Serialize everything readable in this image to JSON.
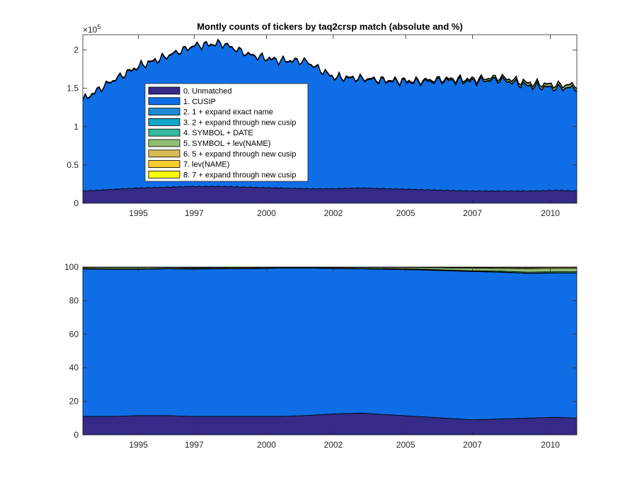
{
  "title": "Montly counts of tickers by taq2crsp match (absolute and %)",
  "chart_data": [
    {
      "type": "area",
      "stacked": true,
      "title": "Montly counts of tickers by taq2crsp match (absolute and %)",
      "xlabel": "",
      "ylabel": "",
      "xlim": [
        1993.0,
        2010.75
      ],
      "ylim": [
        0,
        2.2
      ],
      "y_exponent_label": "×10",
      "y_exponent_power": "5",
      "x_ticks": [
        "1995",
        "1997",
        "2000",
        "2002",
        "2005",
        "2007",
        "2010"
      ],
      "x_tick_positions": [
        1995.0,
        1997.0,
        1999.6,
        2002.0,
        2004.6,
        2007.0,
        2009.8
      ],
      "y_ticks": [
        "0",
        "0.5",
        "1",
        "1.5",
        "2"
      ],
      "y_tick_values": [
        0,
        0.5,
        1,
        1.5,
        2
      ],
      "legend_position": "center-left",
      "x": [
        1993.0,
        1994.0,
        1995.0,
        1996.0,
        1997.0,
        1998.0,
        1999.0,
        2000.0,
        2001.0,
        2002.0,
        2003.0,
        2004.0,
        2005.0,
        2006.0,
        2007.0,
        2008.0,
        2009.0,
        2010.0,
        2010.75
      ],
      "series": [
        {
          "name": "0. Unmatched",
          "color": "#352a87",
          "values": [
            0.16,
            0.18,
            0.2,
            0.21,
            0.22,
            0.22,
            0.21,
            0.2,
            0.19,
            0.19,
            0.2,
            0.19,
            0.18,
            0.17,
            0.16,
            0.16,
            0.16,
            0.17,
            0.16
          ]
        },
        {
          "name": "1. CUSIP",
          "color": "#0f6ee6",
          "values": [
            1.18,
            1.4,
            1.58,
            1.7,
            1.83,
            1.86,
            1.72,
            1.66,
            1.66,
            1.45,
            1.42,
            1.4,
            1.4,
            1.43,
            1.43,
            1.45,
            1.37,
            1.33,
            1.34
          ]
        },
        {
          "name": "2. 1 + expand exact name",
          "color": "#1e8ad2",
          "values": [
            0.002,
            0.002,
            0.002,
            0.002,
            0.002,
            0.002,
            0.002,
            0.002,
            0.002,
            0.002,
            0.002,
            0.002,
            0.002,
            0.002,
            0.002,
            0.002,
            0.002,
            0.002,
            0.002
          ]
        },
        {
          "name": "3. 2 + expand through new cusip",
          "color": "#0fa8c8",
          "values": [
            0.002,
            0.002,
            0.002,
            0.002,
            0.002,
            0.002,
            0.002,
            0.002,
            0.002,
            0.002,
            0.002,
            0.002,
            0.002,
            0.002,
            0.002,
            0.002,
            0.002,
            0.002,
            0.002
          ]
        },
        {
          "name": "4. SYMBOL + DATE",
          "color": "#38b99e",
          "values": [
            0.002,
            0.002,
            0.002,
            0.002,
            0.002,
            0.002,
            0.002,
            0.002,
            0.002,
            0.002,
            0.002,
            0.002,
            0.003,
            0.004,
            0.005,
            0.006,
            0.006,
            0.006,
            0.006
          ]
        },
        {
          "name": "5. SYMBOL + lev(NAME)",
          "color": "#92bf73",
          "values": [
            0.004,
            0.004,
            0.004,
            0.004,
            0.003,
            0.003,
            0.003,
            0.002,
            0.002,
            0.004,
            0.006,
            0.008,
            0.01,
            0.012,
            0.015,
            0.02,
            0.025,
            0.028,
            0.028
          ]
        },
        {
          "name": "6. 5 + expand through new cusip",
          "color": "#d9ba56",
          "values": [
            0.001,
            0.001,
            0.001,
            0.001,
            0.001,
            0.001,
            0.001,
            0.001,
            0.001,
            0.001,
            0.001,
            0.002,
            0.002,
            0.003,
            0.004,
            0.005,
            0.006,
            0.006,
            0.006
          ]
        },
        {
          "name": "7. lev(NAME)",
          "color": "#fcce2e",
          "values": [
            0.001,
            0.001,
            0.001,
            0.001,
            0.001,
            0.001,
            0.001,
            0.001,
            0.001,
            0.001,
            0.001,
            0.001,
            0.001,
            0.002,
            0.002,
            0.003,
            0.003,
            0.003,
            0.003
          ]
        },
        {
          "name": "8. 7 + expand through new cusip",
          "color": "#f9fb0e",
          "values": [
            0.001,
            0.001,
            0.001,
            0.001,
            0.001,
            0.001,
            0.001,
            0.001,
            0.001,
            0.001,
            0.001,
            0.001,
            0.001,
            0.001,
            0.001,
            0.001,
            0.001,
            0.001,
            0.001
          ]
        }
      ]
    },
    {
      "type": "area",
      "stacked": true,
      "title": "",
      "xlabel": "",
      "ylabel": "",
      "xlim": [
        1993.0,
        2010.75
      ],
      "ylim": [
        0,
        100
      ],
      "x_ticks": [
        "1995",
        "1997",
        "2000",
        "2002",
        "2005",
        "2007",
        "2010"
      ],
      "x_tick_positions": [
        1995.0,
        1997.0,
        1999.6,
        2002.0,
        2004.6,
        2007.0,
        2009.8
      ],
      "y_ticks": [
        "0",
        "20",
        "40",
        "60",
        "80",
        "100"
      ],
      "y_tick_values": [
        0,
        20,
        40,
        60,
        80,
        100
      ],
      "x": [
        1993.0,
        1994.0,
        1995.0,
        1996.0,
        1997.0,
        1998.0,
        1999.0,
        2000.0,
        2001.0,
        2002.0,
        2003.0,
        2004.0,
        2005.0,
        2006.0,
        2007.0,
        2008.0,
        2009.0,
        2010.0,
        2010.75
      ],
      "series": [
        {
          "name": "0. Unmatched",
          "color": "#352a87",
          "values": [
            11.0,
            11.0,
            11.5,
            11.5,
            11.0,
            11.0,
            11.0,
            11.0,
            11.5,
            12.5,
            13.0,
            12.0,
            11.0,
            10.0,
            9.0,
            9.5,
            10.0,
            10.5,
            10.0
          ]
        },
        {
          "name": "1. CUSIP",
          "color": "#0f6ee6",
          "values": [
            87.8,
            87.6,
            87.1,
            87.4,
            87.8,
            87.9,
            88.0,
            88.3,
            87.9,
            86.6,
            85.9,
            86.6,
            87.3,
            87.8,
            88.3,
            87.4,
            86.2,
            85.9,
            86.4
          ]
        },
        {
          "name": "2. 1 + expand exact name",
          "color": "#1e8ad2",
          "values": [
            0.1,
            0.1,
            0.1,
            0.1,
            0.1,
            0.1,
            0.1,
            0.1,
            0.1,
            0.1,
            0.1,
            0.1,
            0.1,
            0.1,
            0.1,
            0.1,
            0.1,
            0.1,
            0.1
          ]
        },
        {
          "name": "3. 2 + expand through new cusip",
          "color": "#0fa8c8",
          "values": [
            0.1,
            0.1,
            0.1,
            0.1,
            0.1,
            0.1,
            0.1,
            0.1,
            0.1,
            0.1,
            0.1,
            0.1,
            0.1,
            0.1,
            0.1,
            0.1,
            0.1,
            0.1,
            0.1
          ]
        },
        {
          "name": "4. SYMBOL + DATE",
          "color": "#38b99e",
          "values": [
            0.1,
            0.1,
            0.1,
            0.1,
            0.1,
            0.1,
            0.1,
            0.1,
            0.1,
            0.1,
            0.1,
            0.2,
            0.3,
            0.3,
            0.3,
            0.5,
            0.6,
            0.6,
            0.6
          ]
        },
        {
          "name": "5. SYMBOL + lev(NAME)",
          "color": "#92bf73",
          "values": [
            0.6,
            0.8,
            0.8,
            0.6,
            0.5,
            0.5,
            0.5,
            0.3,
            0.2,
            0.4,
            0.6,
            0.7,
            0.9,
            1.2,
            1.5,
            1.6,
            2.0,
            2.0,
            2.0
          ]
        },
        {
          "name": "6. 5 + expand through new cusip",
          "color": "#d9ba56",
          "values": [
            0.1,
            0.1,
            0.1,
            0.1,
            0.1,
            0.1,
            0.1,
            0.1,
            0.1,
            0.1,
            0.1,
            0.2,
            0.2,
            0.3,
            0.4,
            0.5,
            0.6,
            0.6,
            0.6
          ]
        },
        {
          "name": "7. lev(NAME)",
          "color": "#fcce2e",
          "values": [
            0.1,
            0.1,
            0.1,
            0.1,
            0.1,
            0.1,
            0.1,
            0.1,
            0.1,
            0.1,
            0.1,
            0.1,
            0.1,
            0.2,
            0.2,
            0.3,
            0.3,
            0.3,
            0.3
          ]
        },
        {
          "name": "8. 7 + expand through new cusip",
          "color": "#f9fb0e",
          "values": [
            0.1,
            0.1,
            0.1,
            0.1,
            0.1,
            0.1,
            0.1,
            0.1,
            0.1,
            0.1,
            0.1,
            0.1,
            0.1,
            0.1,
            0.1,
            0.1,
            0.1,
            0.1,
            0.1
          ]
        }
      ]
    }
  ]
}
